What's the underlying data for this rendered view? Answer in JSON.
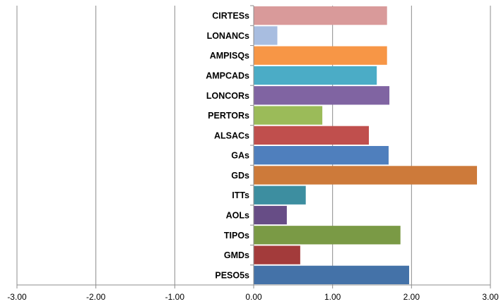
{
  "chart_data": {
    "type": "bar",
    "orientation": "horizontal",
    "categories": [
      "PESO5s",
      "GMDs",
      "TIPOs",
      "AOLs",
      "ITTs",
      "GDs",
      "GAs",
      "ALSACs",
      "PERTORs",
      "LONCORs",
      "AMPCADs",
      "AMPISQs",
      "LONANCs",
      "CIRTESs"
    ],
    "values": [
      1.97,
      0.59,
      1.86,
      0.42,
      0.66,
      2.83,
      1.71,
      1.46,
      0.87,
      1.72,
      1.56,
      1.69,
      0.3,
      1.69
    ],
    "colors": [
      "#4472a8",
      "#a33b3b",
      "#7a9a45",
      "#674d86",
      "#3d8ea0",
      "#cd7a3a",
      "#4f7fbd",
      "#c04f4d",
      "#9bbb59",
      "#8064a2",
      "#4bacc6",
      "#f79646",
      "#a8bde0",
      "#d99a9a"
    ],
    "xlim": [
      -3,
      3
    ],
    "xticks": [
      "-3.00",
      "-2.00",
      "-1.00",
      "0.00",
      "1.00",
      "2.00",
      "3.00"
    ],
    "grid": "vertical",
    "legend": "none",
    "title": "",
    "xlabel": "",
    "ylabel": ""
  }
}
